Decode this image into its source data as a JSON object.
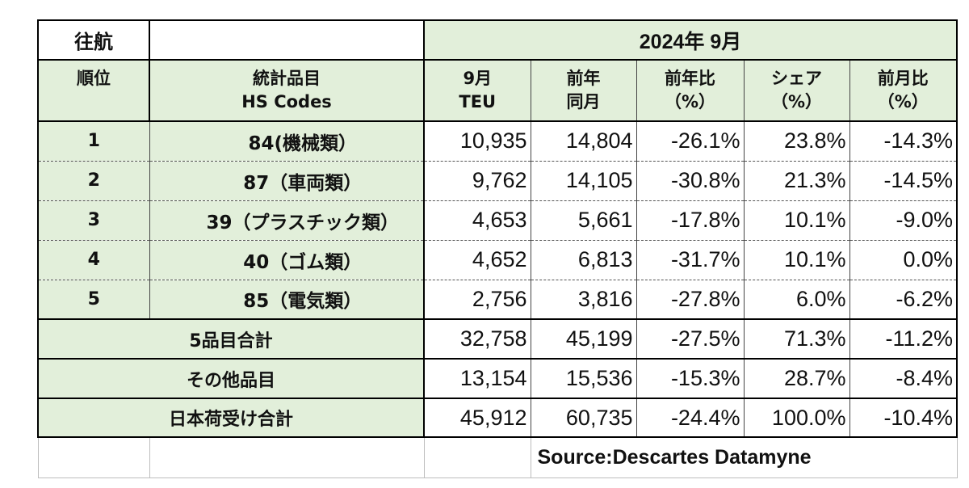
{
  "header": {
    "direction": "往航",
    "period": "2024年 9月"
  },
  "columns": {
    "rank": "順位",
    "item_line1": "統計品目",
    "item_line2": "HS Codes",
    "teu_line1": "9月",
    "teu_line2": "TEU",
    "prev_line1": "前年",
    "prev_line2": "同月",
    "yoy_line1": "前年比",
    "yoy_line2": "（%）",
    "share_line1": "シェア",
    "share_line2": "（%）",
    "mom_line1": "前月比",
    "mom_line2": "（%）"
  },
  "rows": [
    {
      "rank": "1",
      "item": "84(機械類）",
      "teu": "10,935",
      "prev": "14,804",
      "yoy": "-26.1%",
      "share": "23.8%",
      "mom": "-14.3%"
    },
    {
      "rank": "2",
      "item": "87（車両類）",
      "teu": "9,762",
      "prev": "14,105",
      "yoy": "-30.8%",
      "share": "21.3%",
      "mom": "-14.5%"
    },
    {
      "rank": "3",
      "item": "39（プラスチック類）",
      "teu": "4,653",
      "prev": "5,661",
      "yoy": "-17.8%",
      "share": "10.1%",
      "mom": "-9.0%"
    },
    {
      "rank": "4",
      "item": "40（ゴム類）",
      "teu": "4,652",
      "prev": "6,813",
      "yoy": "-31.7%",
      "share": "10.1%",
      "mom": "0.0%"
    },
    {
      "rank": "5",
      "item": "85（電気類）",
      "teu": "2,756",
      "prev": "3,816",
      "yoy": "-27.8%",
      "share": "6.0%",
      "mom": "-6.2%"
    }
  ],
  "totals": [
    {
      "label": "5品目合計",
      "teu": "32,758",
      "prev": "45,199",
      "yoy": "-27.5%",
      "share": "71.3%",
      "mom": "-11.2%"
    },
    {
      "label": "その他品目",
      "teu": "13,154",
      "prev": "15,536",
      "yoy": "-15.3%",
      "share": "28.7%",
      "mom": "-8.4%"
    },
    {
      "label": "日本荷受け合計",
      "teu": "45,912",
      "prev": "60,735",
      "yoy": "-24.4%",
      "share": "100.0%",
      "mom": "-10.4%"
    }
  ],
  "source": "Source:Descartes  Datamyne"
}
